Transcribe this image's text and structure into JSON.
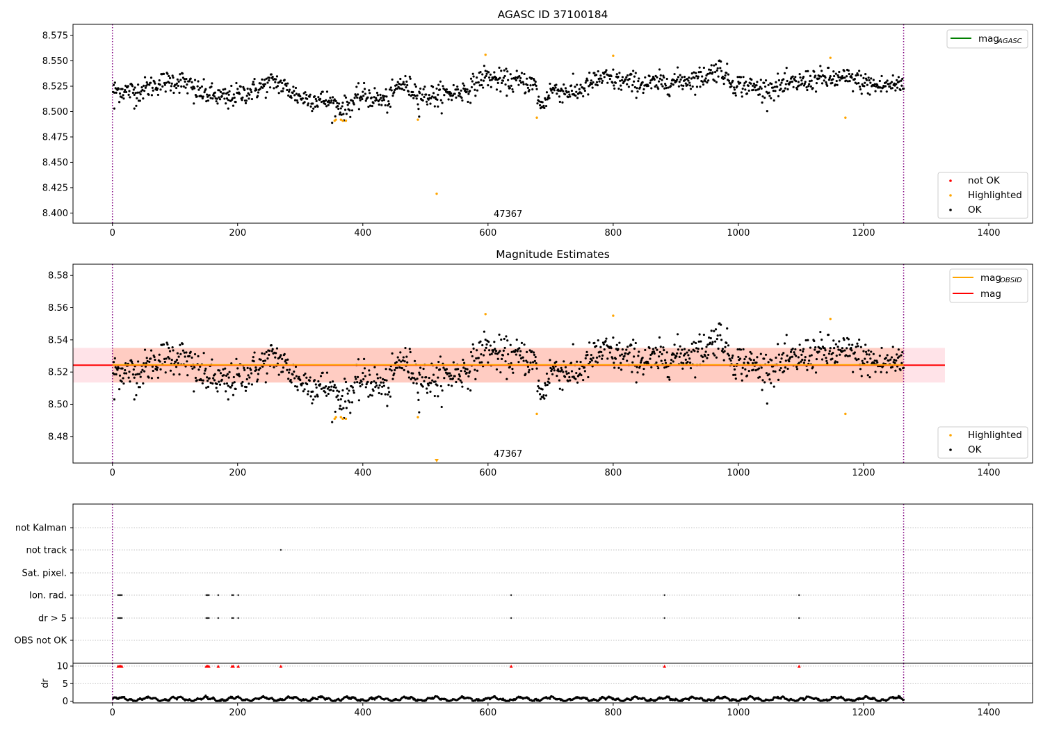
{
  "chart_data": [
    {
      "type": "scatter",
      "title": "AGASC ID 37100184",
      "xlim": [
        -63,
        1470
      ],
      "ylim": [
        8.39,
        8.586
      ],
      "x_ticks": [
        0,
        200,
        400,
        600,
        800,
        1000,
        1200,
        1400
      ],
      "y_ticks": [
        8.4,
        8.425,
        8.45,
        8.475,
        8.5,
        8.525,
        8.55,
        8.575
      ],
      "y_tick_labels": [
        "8.400",
        "8.425",
        "8.450",
        "8.475",
        "8.500",
        "8.525",
        "8.550",
        "8.575"
      ],
      "vlines": [
        0,
        1264
      ],
      "vline_color": "#800080",
      "obsid_label": {
        "text": "47367",
        "x": 632
      },
      "legends": [
        {
          "position": "top-right",
          "entries": [
            {
              "label": "mag",
              "sub": "AGASC",
              "color": "#008000",
              "kind": "line"
            }
          ]
        },
        {
          "position": "bottom-right",
          "entries": [
            {
              "label": "not OK",
              "color": "#ff0000",
              "kind": "dot"
            },
            {
              "label": "Highlighted",
              "color": "#ffa500",
              "kind": "dot"
            },
            {
              "label": "OK",
              "color": "#000000",
              "kind": "dot"
            }
          ]
        }
      ],
      "series": [
        {
          "label": "OK",
          "color": "#000000",
          "baseline": 8.522,
          "noise": 0.006
        },
        {
          "label": "Highlighted",
          "color": "#ffa500",
          "x": [
            355,
            357,
            365,
            368,
            373,
            488,
            518,
            596,
            678,
            800,
            1147,
            1171
          ],
          "y": [
            8.491,
            8.492,
            8.492,
            8.491,
            8.491,
            8.492,
            8.419,
            8.556,
            8.494,
            8.555,
            8.553,
            8.494
          ]
        }
      ]
    },
    {
      "type": "scatter",
      "title": "Magnitude Estimates",
      "xlim": [
        -63,
        1470
      ],
      "ylim": [
        8.4635,
        8.587
      ],
      "x_ticks": [
        0,
        200,
        400,
        600,
        800,
        1000,
        1200,
        1400
      ],
      "y_ticks": [
        8.48,
        8.5,
        8.52,
        8.54,
        8.56,
        8.58
      ],
      "y_tick_labels": [
        "8.48",
        "8.50",
        "8.52",
        "8.54",
        "8.56",
        "8.58"
      ],
      "vlines": [
        0,
        1264
      ],
      "mag_line": {
        "value": 8.5243,
        "color": "#ff0000",
        "band": [
          8.5135,
          8.535
        ],
        "band_x": [
          -63,
          1330
        ]
      },
      "obsid_line": {
        "value": 8.5245,
        "color": "#ffa500",
        "band": [
          8.5135,
          8.535
        ],
        "band_x": [
          0,
          1264
        ]
      },
      "obsid_label": {
        "text": "47367",
        "x": 632
      },
      "legends": [
        {
          "position": "top-right",
          "entries": [
            {
              "label": "mag",
              "sub": "OBSID",
              "color": "#ffa500",
              "kind": "line"
            },
            {
              "label": "mag",
              "sub": "",
              "color": "#ff0000",
              "kind": "line"
            }
          ]
        },
        {
          "position": "bottom-right",
          "entries": [
            {
              "label": "Highlighted",
              "color": "#ffa500",
              "kind": "dot"
            },
            {
              "label": "OK",
              "color": "#000000",
              "kind": "dot"
            }
          ]
        }
      ]
    },
    {
      "type": "scatter",
      "xlim": [
        -63,
        1470
      ],
      "x_ticks": [
        0,
        200,
        400,
        600,
        800,
        1000,
        1200,
        1400
      ],
      "vlines": [
        0,
        1264
      ],
      "flag_rows": [
        "not Kalman",
        "not track",
        "Sat. pixel.",
        "Ion. rad.",
        "dr > 5",
        "OBS not OK"
      ],
      "flags": {
        "not track": [
          269
        ],
        "Ion. rad.": [
          9,
          11,
          13,
          15,
          150,
          152,
          154,
          169,
          191,
          193,
          201,
          637,
          882,
          1097
        ],
        "dr > 5": [
          9,
          11,
          13,
          15,
          150,
          152,
          154,
          169,
          191,
          193,
          201,
          637,
          882,
          1097
        ]
      }
    },
    {
      "type": "scatter",
      "ylabel": "dr",
      "xlim": [
        -63,
        1470
      ],
      "ylim": [
        -0.5,
        10.8
      ],
      "x_ticks": [
        0,
        200,
        400,
        600,
        800,
        1000,
        1200,
        1400
      ],
      "y_ticks": [
        0,
        5,
        10
      ],
      "y_tick_labels": [
        "0",
        "5",
        "10"
      ],
      "vlines": [
        0,
        1264
      ],
      "marker_color": "#ff0000",
      "markers_x": [
        9,
        11,
        13,
        15,
        150,
        152,
        154,
        169,
        191,
        193,
        201,
        269,
        637,
        882,
        1097
      ]
    }
  ]
}
